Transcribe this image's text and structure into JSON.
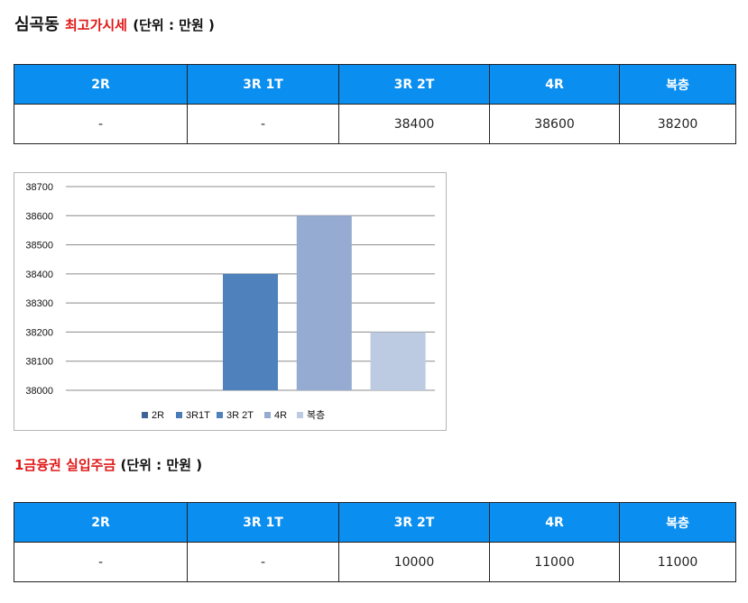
{
  "section1": {
    "place": "심곡동",
    "title": "최고가시세",
    "unit": "(단위 : 만원 )"
  },
  "table1": {
    "headers": [
      "2R",
      "3R 1T",
      "3R 2T",
      "4R",
      "복층"
    ],
    "row": [
      "-",
      "-",
      "38400",
      "38600",
      "38200"
    ]
  },
  "chart_data": {
    "type": "bar",
    "categories": [
      "2R",
      "3R1T",
      "3R 2T",
      "4R",
      "복층"
    ],
    "values": [
      null,
      null,
      38400,
      38600,
      38200
    ],
    "colors": [
      "#3f6397",
      "#4a7bb9",
      "#4f81bd",
      "#95abd1",
      "#bccbe1"
    ],
    "ylim": [
      38000,
      38700
    ],
    "yticks": [
      "38700",
      "38600",
      "38500",
      "38400",
      "38300",
      "38200",
      "38100",
      "38000"
    ],
    "grid": true,
    "legend": "bottom"
  },
  "section2": {
    "title": "1금융권 실입주금",
    "unit": "(단위 : 만원 )"
  },
  "table2": {
    "headers": [
      "2R",
      "3R 1T",
      "3R 2T",
      "4R",
      "복층"
    ],
    "row": [
      "-",
      "-",
      "10000",
      "11000",
      "11000"
    ]
  }
}
